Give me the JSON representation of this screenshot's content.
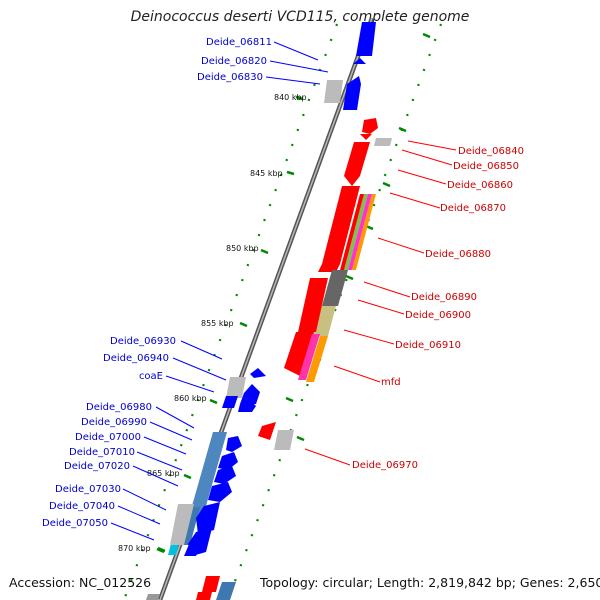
{
  "title": "Deinococcus deserti VCD115, complete genome",
  "footer": {
    "accession": "Accession: NC_012526",
    "topology": "Topology: circular; Length: 2,819,842 bp; Genes: 2,650"
  },
  "colors": {
    "forward": "#ff0000",
    "reverse": "#0000ff",
    "forward_label": "#cc0000",
    "reverse_label": "#0000cc",
    "backbone": "#7a7a7a",
    "tick": "#008800"
  },
  "ticks": [
    {
      "label": "840 kbp"
    },
    {
      "label": "845 kbp"
    },
    {
      "label": "850 kbp"
    },
    {
      "label": "855 kbp"
    },
    {
      "label": "860 kbp"
    },
    {
      "label": "865 kbp"
    },
    {
      "label": "870 kbp"
    }
  ],
  "reverse_labels": [
    {
      "text": "Deide_06811"
    },
    {
      "text": "Deide_06820"
    },
    {
      "text": "Deide_06830"
    },
    {
      "text": "Deide_06930"
    },
    {
      "text": "Deide_06940"
    },
    {
      "text": "coaE"
    },
    {
      "text": "Deide_06980"
    },
    {
      "text": "Deide_06990"
    },
    {
      "text": "Deide_07000"
    },
    {
      "text": "Deide_07010"
    },
    {
      "text": "Deide_07020"
    },
    {
      "text": "Deide_07030"
    },
    {
      "text": "Deide_07040"
    },
    {
      "text": "Deide_07050"
    }
  ],
  "forward_labels": [
    {
      "text": "Deide_06840"
    },
    {
      "text": "Deide_06850"
    },
    {
      "text": "Deide_06860"
    },
    {
      "text": "Deide_06870"
    },
    {
      "text": "Deide_06880"
    },
    {
      "text": "Deide_06890"
    },
    {
      "text": "Deide_06900"
    },
    {
      "text": "Deide_06910"
    },
    {
      "text": "mfd"
    },
    {
      "text": "Deide_06970"
    }
  ]
}
